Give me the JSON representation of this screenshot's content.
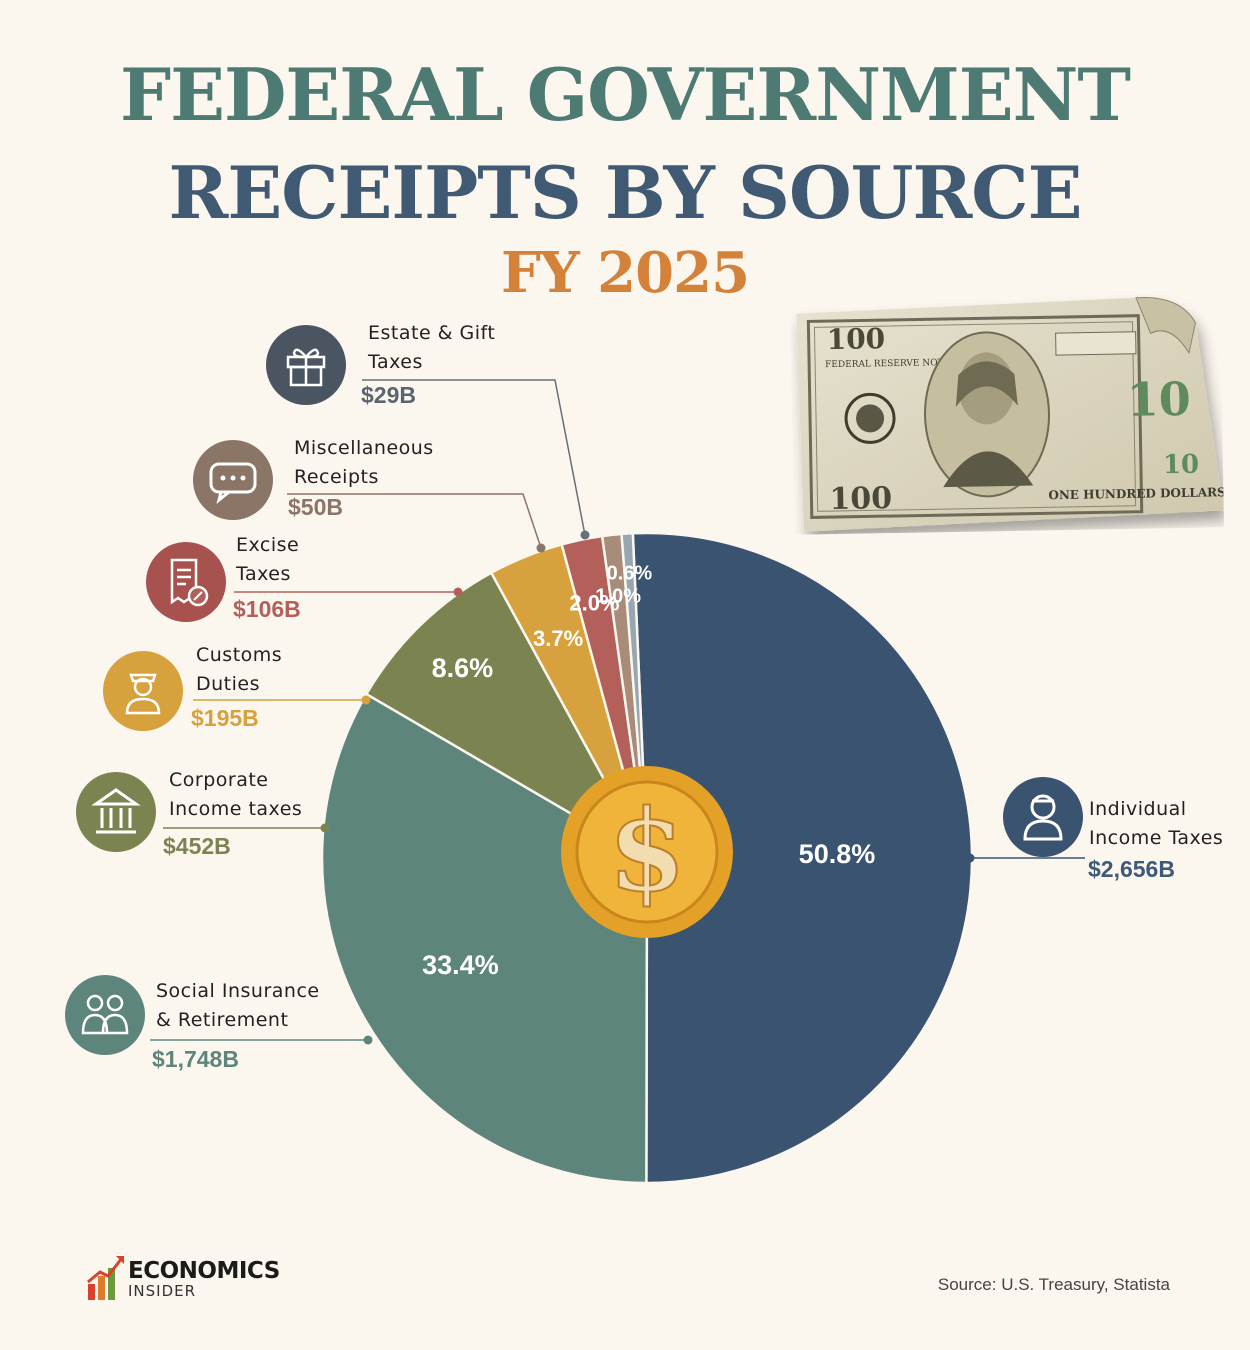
{
  "title_line1": "FEDERAL GOVERNMENT",
  "title_line2": "RECEIPTS BY SOURCE",
  "subtitle": "FY 2025",
  "source": "Source: U.S. Treasury, Statista",
  "brand": {
    "name": "ECONOMICS",
    "sub": "INSIDER"
  },
  "bill_text": {
    "denomination": "100",
    "top_banner": "FEDERAL RESERVE NOTE",
    "bottom_banner": "ONE HUNDRED DOLLARS"
  },
  "center_symbol": "$",
  "chart_data": {
    "type": "pie",
    "title": "FEDERAL GOVERNMENT RECEIPTS BY SOURCE",
    "subtitle": "FY 2025",
    "slices": [
      {
        "label_lines": [
          "Individual",
          "Income Taxes"
        ],
        "amount": "$2,656B",
        "value": 2656,
        "percent": "50.8%",
        "color": "#3a5370",
        "icon": "person-icon"
      },
      {
        "label_lines": [
          "Social Insurance",
          "& Retirement"
        ],
        "amount": "$1,748B",
        "value": 1748,
        "percent": "33.4%",
        "color": "#5e857c",
        "icon": "family-icon"
      },
      {
        "label_lines": [
          "Corporate",
          "Income taxes"
        ],
        "amount": "$452B",
        "value": 452,
        "percent": "8.6%",
        "color": "#7b8450",
        "icon": "bank-building-icon"
      },
      {
        "label_lines": [
          "Customs",
          "Duties"
        ],
        "amount": "$195B",
        "value": 195,
        "percent": "3.7%",
        "color": "#d7a23d",
        "icon": "customs-officer-icon"
      },
      {
        "label_lines": [
          "Excise",
          "Taxes"
        ],
        "amount": "$106B",
        "value": 106,
        "percent": "2.0%",
        "color": "#b4605a",
        "icon": "tax-receipt-icon"
      },
      {
        "label_lines": [
          "Miscellaneous",
          "Receipts"
        ],
        "amount": "$50B",
        "value": 50,
        "percent": "1.0%",
        "color": "#a88b78",
        "icon": "chat-bubble-icon"
      },
      {
        "label_lines": [
          "Estate & Gift",
          "Taxes"
        ],
        "amount": "$29B",
        "value": 29,
        "percent": "0.6%",
        "color": "#96a6b2",
        "icon": "gift-icon"
      }
    ]
  }
}
